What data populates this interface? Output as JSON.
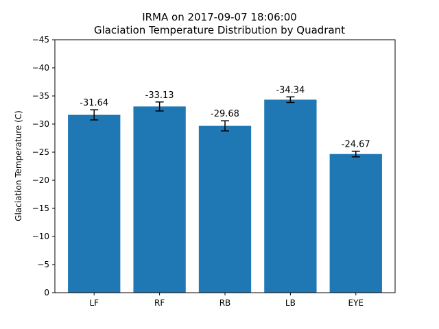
{
  "chart_data": {
    "type": "bar",
    "title": "IRMA on 2017-09-07 18:06:00",
    "subtitle": "Glaciation Temperature Distribution by Quadrant",
    "xlabel": "",
    "ylabel": "Glaciation Temperature (C)",
    "categories": [
      "LF",
      "RF",
      "RB",
      "LB",
      "EYE"
    ],
    "values": [
      -31.64,
      -33.13,
      -29.68,
      -34.34,
      -24.67
    ],
    "value_labels": [
      "-31.64",
      "-33.13",
      "-29.68",
      "-34.34",
      "-24.67"
    ],
    "errors": [
      0.9,
      0.8,
      0.9,
      0.5,
      0.5
    ],
    "ylim": [
      0,
      -45
    ],
    "yticks": [
      0,
      -5,
      -10,
      -15,
      -20,
      -25,
      -30,
      -35,
      -40,
      -45
    ],
    "ytick_labels": [
      "0",
      "−5",
      "−10",
      "−15",
      "−20",
      "−25",
      "−30",
      "−35",
      "−40",
      "−45"
    ],
    "bar_color": "#1f77b4",
    "grid": false,
    "legend": "none"
  }
}
